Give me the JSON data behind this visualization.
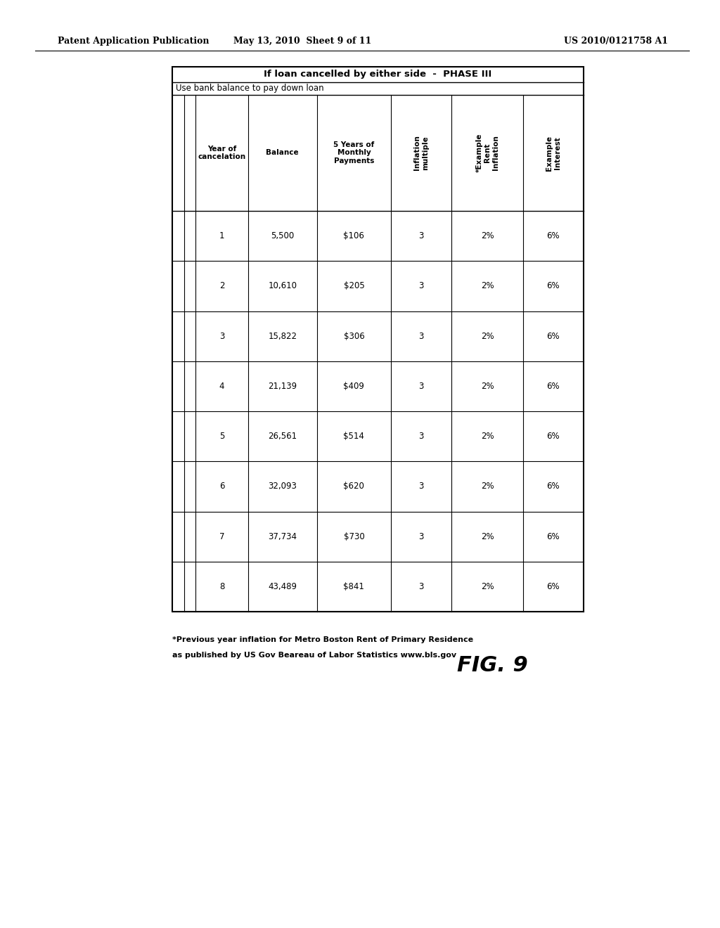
{
  "page_header_left": "Patent Application Publication",
  "page_header_mid": "May 13, 2010  Sheet 9 of 11",
  "page_header_right": "US 2010/0121758 A1",
  "table_title": "If loan cancelled by either side  -  PHASE III",
  "table_subtitle": "Use bank balance to pay down loan",
  "col_headers": [
    [
      "Year of\ncancelation"
    ],
    [
      "Balance"
    ],
    [
      "5 Years of\nMonthly\nPayments"
    ],
    [
      "Inflation\nmultiple"
    ],
    [
      "*Example\nRent\nInflation"
    ],
    [
      "Example\nInterest"
    ]
  ],
  "data_rows": [
    [
      "1",
      "5,500",
      "$106",
      "3",
      "2%",
      "6%"
    ],
    [
      "2",
      "10,610",
      "$205",
      "3",
      "2%",
      "6%"
    ],
    [
      "3",
      "15,822",
      "$306",
      "3",
      "2%",
      "6%"
    ],
    [
      "4",
      "21,139",
      "$409",
      "3",
      "2%",
      "6%"
    ],
    [
      "5",
      "26,561",
      "$514",
      "3",
      "2%",
      "6%"
    ],
    [
      "6",
      "32,093",
      "$620",
      "3",
      "2%",
      "6%"
    ],
    [
      "7",
      "37,734",
      "$730",
      "3",
      "2%",
      "6%"
    ],
    [
      "8",
      "43,489",
      "$841",
      "3",
      "2%",
      "6%"
    ]
  ],
  "footnote_line1": "*Previous year inflation for Metro Boston Rent of Primary Residence",
  "footnote_line2": "as published by US Gov Beareau of Labor Statistics www.bls.gov",
  "fig_label": "FIG. 9",
  "background_color": "#ffffff",
  "text_color": "#000000"
}
